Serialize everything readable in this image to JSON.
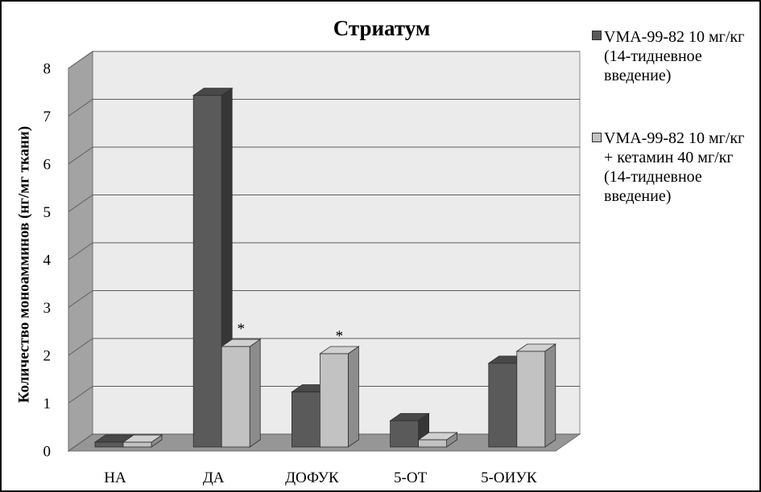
{
  "chart_data": {
    "type": "bar",
    "style": "3d",
    "title": "Стриатум",
    "ylabel": "Количество моноамминов (нг/мг ткани)",
    "categories": [
      "НА",
      "ДА",
      "ДОФУК",
      "5-ОТ",
      "5-ОИУК"
    ],
    "ylim": [
      0,
      8
    ],
    "yticks": [
      0,
      1,
      2,
      3,
      4,
      5,
      6,
      7,
      8
    ],
    "grid": true,
    "legend_position": "right",
    "series": [
      {
        "name": "VMA-99-82 10 мг/кг (14-тидневное введение)",
        "color": "#5a5a5a",
        "values": [
          0.1,
          7.35,
          1.15,
          0.55,
          1.75
        ],
        "point_labels": [
          "",
          "",
          "",
          "",
          ""
        ]
      },
      {
        "name": "VMA-99-82 10 мг/кг + кетамин 40 мг/кг (14-тидневное введение)",
        "color": "#c2c2c2",
        "values": [
          0.1,
          2.1,
          1.95,
          0.15,
          2.0
        ],
        "point_labels": [
          "",
          "*",
          "*",
          "",
          ""
        ]
      }
    ]
  }
}
